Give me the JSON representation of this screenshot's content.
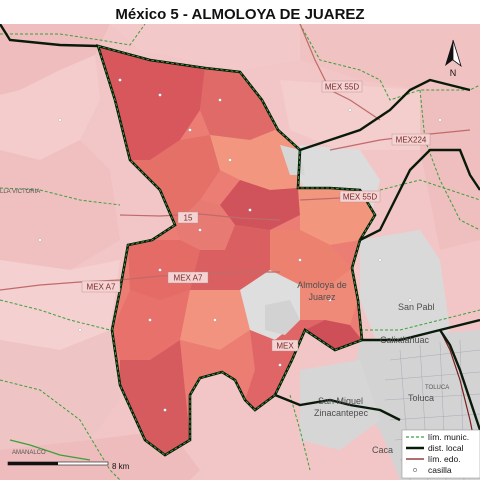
{
  "title": "México 5 - ALMOLOYA DE JUAREZ",
  "north_label": "N",
  "scale_label": "8 km",
  "colors": {
    "district_dark": "#d6585e",
    "district_mid": "#e8736f",
    "district_light": "#f19580",
    "background_muni": "#f2c6c6",
    "outside_city": "#d8d8d8",
    "local_boundary": "#0a1a0a",
    "muni_boundary": "#3aa03a",
    "state_boundary": "#7a1c1c"
  },
  "places": {
    "almoloya": "Almoloya de",
    "juarez": "Juarez",
    "san_pablo": "San Pabl",
    "calixtlahuaca": "Calixtlahuac",
    "toluca_small": "TOLUCA",
    "toluca": "Toluca",
    "san_miguel": "San Miguel",
    "zinacantepec": "Zinacantepec",
    "caca": "Caca",
    "villa_victoria": "LLA VICTORIA",
    "amanalco": "AMANALCO"
  },
  "highways": {
    "mex55d": "MEX 55D",
    "mex224": "MEX224",
    "mex55d_b": "MEX 55D",
    "mex15": "15",
    "mex_a7_left": "MEX A7",
    "mex_a7_mid": "MEX A7",
    "mex_a": "MEX"
  },
  "legend": {
    "items": [
      {
        "label": "lím. munic."
      },
      {
        "label": "dist. local"
      },
      {
        "label": "lím. edo."
      },
      {
        "label": "casilla"
      }
    ]
  }
}
